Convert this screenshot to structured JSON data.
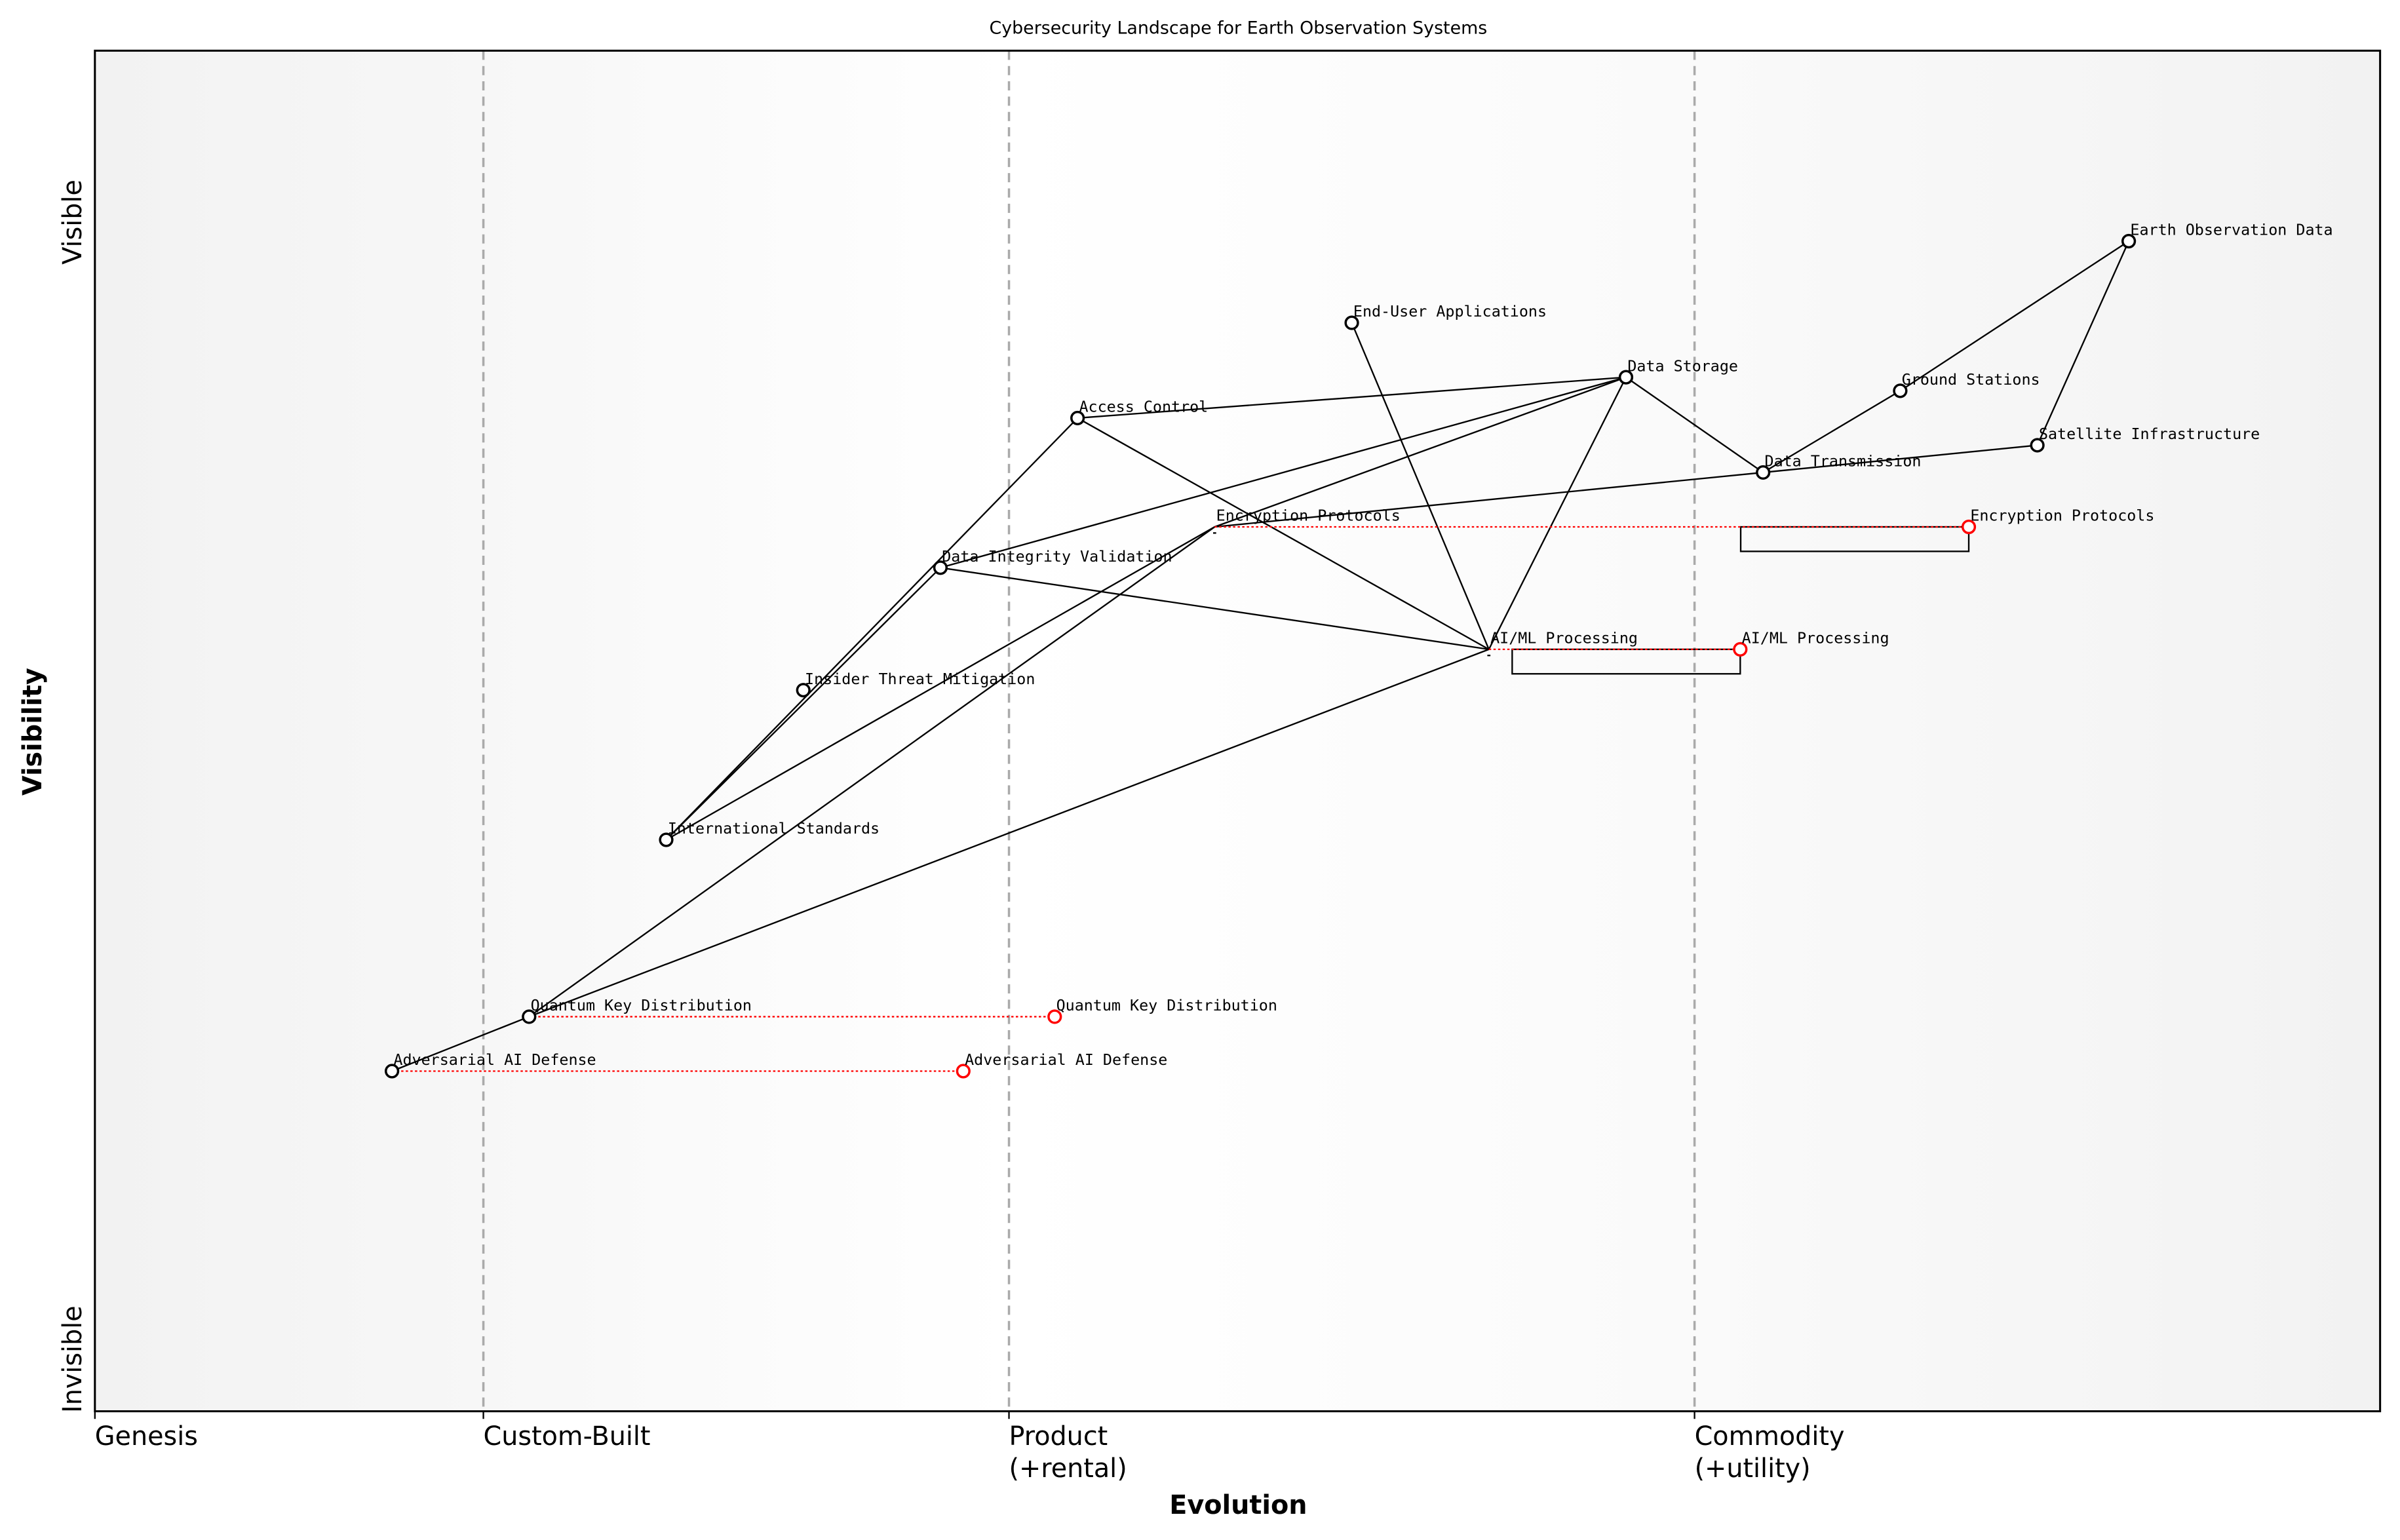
{
  "title": "Cybersecurity Landscape for Earth Observation Systems",
  "x_axis": {
    "label": "Evolution",
    "stages": [
      {
        "label": "Genesis",
        "sub": "",
        "at": 0.0
      },
      {
        "label": "Custom-Built",
        "sub": "",
        "at": 0.17
      },
      {
        "label": "Product",
        "sub": "(+rental)",
        "at": 0.4
      },
      {
        "label": "Commodity",
        "sub": "(+utility)",
        "at": 0.7
      }
    ],
    "range": [
      0,
      1
    ]
  },
  "y_axis": {
    "label": "Visibility",
    "top_label": "Visible",
    "bottom_label": "Invisible",
    "range": [
      0,
      1
    ]
  },
  "colors": {
    "component": "#000000",
    "evolve": "#ff0000",
    "stage_line": "#aaaaaa",
    "genesis_bg": "#f2f2f2",
    "commodity_bg": "#f2f2f2"
  },
  "components": [
    {
      "name": "Earth Observation Data",
      "evolution": 0.89,
      "visibility": 0.86
    },
    {
      "name": "End-User Applications",
      "evolution": 0.55,
      "visibility": 0.8
    },
    {
      "name": "Data Storage",
      "evolution": 0.67,
      "visibility": 0.76
    },
    {
      "name": "Ground Stations",
      "evolution": 0.79,
      "visibility": 0.75
    },
    {
      "name": "Satellite Infrastructure",
      "evolution": 0.85,
      "visibility": 0.71
    },
    {
      "name": "Access Control",
      "evolution": 0.43,
      "visibility": 0.73
    },
    {
      "name": "Data Transmission",
      "evolution": 0.73,
      "visibility": 0.69
    },
    {
      "name": "Encryption Protocols",
      "evolution": 0.49,
      "visibility": 0.65,
      "marker": false
    },
    {
      "name": "Data Integrity Validation",
      "evolution": 0.37,
      "visibility": 0.62
    },
    {
      "name": "AI/ML Processing",
      "evolution": 0.61,
      "visibility": 0.56,
      "marker": false
    },
    {
      "name": "Insider Threat Mitigation",
      "evolution": 0.31,
      "visibility": 0.53
    },
    {
      "name": "International Standards",
      "evolution": 0.25,
      "visibility": 0.42
    },
    {
      "name": "Quantum Key Distribution",
      "evolution": 0.19,
      "visibility": 0.29
    },
    {
      "name": "Adversarial AI Defense",
      "evolution": 0.13,
      "visibility": 0.25
    }
  ],
  "links": [
    [
      "Earth Observation Data",
      "Ground Stations"
    ],
    [
      "Earth Observation Data",
      "Satellite Infrastructure"
    ],
    [
      "Ground Stations",
      "Data Transmission"
    ],
    [
      "Satellite Infrastructure",
      "Data Transmission"
    ],
    [
      "Data Transmission",
      "Encryption Protocols"
    ],
    [
      "Data Storage",
      "Data Transmission"
    ],
    [
      "Data Storage",
      "Access Control"
    ],
    [
      "Data Storage",
      "Data Integrity Validation"
    ],
    [
      "Data Storage",
      "Encryption Protocols"
    ],
    [
      "Data Storage",
      "AI/ML Processing"
    ],
    [
      "End-User Applications",
      "AI/ML Processing"
    ],
    [
      "Access Control",
      "AI/ML Processing"
    ],
    [
      "Access Control",
      "International Standards"
    ],
    [
      "Data Integrity Validation",
      "International Standards"
    ],
    [
      "Data Integrity Validation",
      "AI/ML Processing"
    ],
    [
      "International Standards",
      "Encryption Protocols"
    ],
    [
      "Encryption Protocols",
      "Quantum Key Distribution"
    ],
    [
      "AI/ML Processing",
      "Quantum Key Distribution"
    ],
    [
      "Quantum Key Distribution",
      "Adversarial AI Defense"
    ]
  ],
  "evolutions": [
    {
      "name": "Encryption Protocols",
      "from": 0.49,
      "to": 0.82,
      "visibility": 0.65,
      "inertia": true
    },
    {
      "name": "AI/ML Processing",
      "from": 0.61,
      "to": 0.72,
      "visibility": 0.56,
      "inertia": true
    },
    {
      "name": "Quantum Key Distribution",
      "from": 0.19,
      "to": 0.42,
      "visibility": 0.29,
      "inertia": false
    },
    {
      "name": "Adversarial AI Defense",
      "from": 0.13,
      "to": 0.38,
      "visibility": 0.25,
      "inertia": false
    }
  ]
}
